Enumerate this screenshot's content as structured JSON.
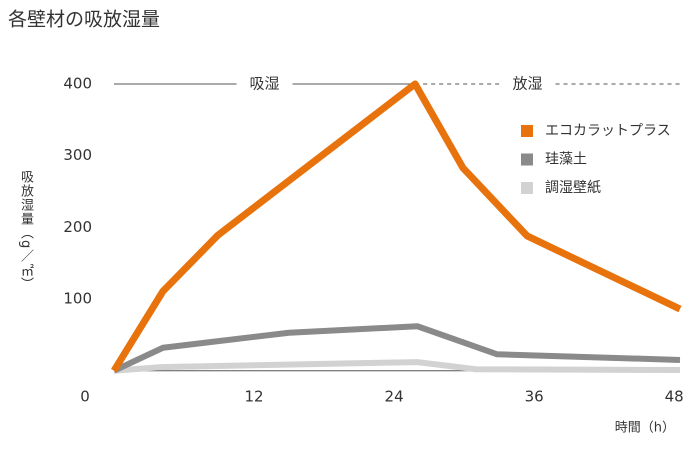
{
  "chart_data": {
    "type": "line",
    "title": "各壁材の吸放湿量",
    "y_label": "吸放湿量（g／㎡）",
    "x_label": "時間（h）",
    "annotations": [
      "吸湿",
      "放湿"
    ],
    "xlim": [
      0,
      48.5
    ],
    "ylim": [
      0,
      400
    ],
    "xticks": [
      0,
      12,
      24,
      36,
      48
    ],
    "yticks": [
      100,
      200,
      300,
      400
    ],
    "grid": false,
    "legend": "right",
    "series": [
      {
        "name": "エコカラットプラス",
        "color": "#e8720c",
        "x": [
          0,
          4.2,
          8.9,
          25.8,
          29.9,
          35.4,
          48.5
        ],
        "values": [
          0,
          111,
          189,
          400,
          283,
          188,
          86
        ]
      },
      {
        "name": "珪藻土",
        "color": "#8a8a8a",
        "x": [
          0,
          4.2,
          15,
          26,
          32.8,
          48.5
        ],
        "values": [
          0,
          32,
          53,
          62,
          23,
          15
        ]
      },
      {
        "name": "調湿壁紙",
        "color": "#d2d2d2",
        "x": [
          0,
          4,
          26,
          31,
          48.5
        ],
        "values": [
          0,
          5,
          12,
          2,
          1
        ]
      }
    ]
  }
}
